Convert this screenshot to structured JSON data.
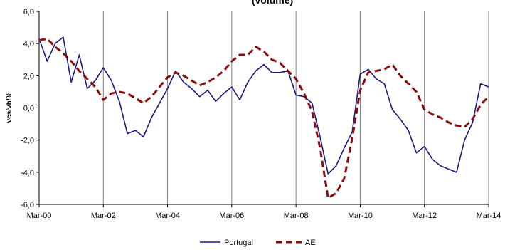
{
  "chart_data": {
    "type": "line",
    "title": "(volume)",
    "xlabel": "",
    "ylabel": "vcs/vh/%",
    "ylim": [
      -6,
      6
    ],
    "yticks": [
      "6,0",
      "4,0",
      "2,0",
      "0,0",
      "-2,0",
      "-4,0",
      "-6,0"
    ],
    "ytick_values": [
      6,
      4,
      2,
      0,
      -2,
      -4,
      -6
    ],
    "xticks": [
      "Mar-00",
      "Mar-02",
      "Mar-04",
      "Mar-06",
      "Mar-08",
      "Mar-10",
      "Mar-12",
      "Mar-14"
    ],
    "grid": "vertical",
    "legend": "bottom",
    "x_quarters": [
      "2000Q1",
      "2000Q2",
      "2000Q3",
      "2000Q4",
      "2001Q1",
      "2001Q2",
      "2001Q3",
      "2001Q4",
      "2002Q1",
      "2002Q2",
      "2002Q3",
      "2002Q4",
      "2003Q1",
      "2003Q2",
      "2003Q3",
      "2003Q4",
      "2004Q1",
      "2004Q2",
      "2004Q3",
      "2004Q4",
      "2005Q1",
      "2005Q2",
      "2005Q3",
      "2005Q4",
      "2006Q1",
      "2006Q2",
      "2006Q3",
      "2006Q4",
      "2007Q1",
      "2007Q2",
      "2007Q3",
      "2007Q4",
      "2008Q1",
      "2008Q2",
      "2008Q3",
      "2008Q4",
      "2009Q1",
      "2009Q2",
      "2009Q3",
      "2009Q4",
      "2010Q1",
      "2010Q2",
      "2010Q3",
      "2010Q4",
      "2011Q1",
      "2011Q2",
      "2011Q3",
      "2011Q4",
      "2012Q1",
      "2012Q2",
      "2012Q3",
      "2012Q4",
      "2013Q1",
      "2013Q2",
      "2013Q3",
      "2013Q4",
      "2014Q1"
    ],
    "series": [
      {
        "name": "Portugal",
        "color": "#1a1a80",
        "style": "solid",
        "values": [
          4.3,
          2.9,
          4.0,
          4.4,
          1.6,
          3.3,
          1.2,
          1.7,
          2.5,
          1.7,
          0.4,
          -1.6,
          -1.4,
          -1.8,
          -0.6,
          0.3,
          1.2,
          2.3,
          1.6,
          1.2,
          0.7,
          1.1,
          0.4,
          0.9,
          1.3,
          0.5,
          1.6,
          2.3,
          2.7,
          2.2,
          2.2,
          2.3,
          0.8,
          0.7,
          0.3,
          -1.8,
          -4.1,
          -3.6,
          -2.5,
          -1.5,
          2.1,
          2.4,
          1.8,
          1.5,
          -0.1,
          -0.7,
          -1.4,
          -2.8,
          -2.4,
          -3.2,
          -3.6,
          -3.8,
          -4.0,
          -2.0,
          -0.9,
          1.5,
          1.3
        ]
      },
      {
        "name": "AE",
        "color": "#8b0e0e",
        "style": "dashed",
        "values": [
          4.2,
          4.3,
          3.8,
          3.4,
          2.9,
          2.3,
          1.8,
          1.3,
          0.5,
          0.9,
          1.0,
          0.9,
          0.6,
          0.3,
          0.7,
          1.3,
          1.9,
          2.2,
          2.0,
          1.7,
          1.4,
          1.6,
          1.9,
          2.3,
          2.9,
          3.3,
          3.3,
          3.8,
          3.5,
          3.0,
          2.8,
          2.3,
          1.8,
          0.9,
          -0.2,
          -2.5,
          -5.6,
          -5.3,
          -4.4,
          -1.9,
          1.1,
          2.2,
          2.3,
          2.4,
          2.7,
          2.0,
          1.5,
          1.0,
          -0.1,
          -0.4,
          -0.6,
          -0.9,
          -1.1,
          -1.2,
          -0.7,
          0.2,
          0.7
        ]
      }
    ]
  }
}
